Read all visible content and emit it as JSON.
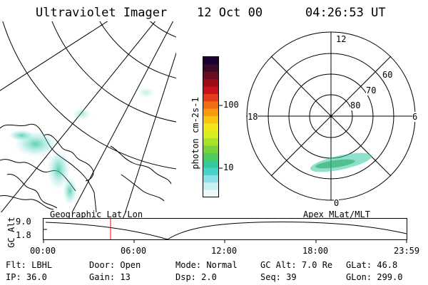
{
  "header": {
    "title": "Ultraviolet Imager",
    "date": "12 Oct 00",
    "time": "04:26:53 UT"
  },
  "colorbar": {
    "unit_label": "photon cm-2s-1",
    "ticks": [
      "100",
      "10"
    ],
    "colors": [
      "#1a0033",
      "#3b0a2a",
      "#6b0c20",
      "#9c0d18",
      "#c8101a",
      "#e53a1a",
      "#f06c12",
      "#f69a0e",
      "#f8c412",
      "#f4e61a",
      "#d8ee20",
      "#a8e22a",
      "#78d43c",
      "#4ccc5c",
      "#34c89a",
      "#48d2cc",
      "#8ae0e6",
      "#c8eff2",
      "#eef8fa"
    ]
  },
  "left_panel": {
    "label": "Geographic Lat/Lon"
  },
  "right_panel": {
    "label": "Apex MLat/MLT",
    "mlt_labels": {
      "top": "12",
      "left": "18",
      "right": "6",
      "bottom": "0"
    },
    "lat_labels": [
      "60",
      "70",
      "80"
    ]
  },
  "altitude_plot": {
    "ylabel": "GC Alt",
    "yticks": [
      "9.0",
      "1.8"
    ],
    "xticks": [
      "00:00",
      "06:00",
      "12:00",
      "18:00",
      "23:59"
    ],
    "marker_color": "#ff0000"
  },
  "info": {
    "row1": [
      {
        "label": "Flt:",
        "value": "LBHL"
      },
      {
        "label": "Door:",
        "value": "Open"
      },
      {
        "label": "Mode:",
        "value": "Normal"
      },
      {
        "label": "GC Alt:",
        "value": "7.0 Re"
      },
      {
        "label": "GLat:",
        "value": "46.8"
      }
    ],
    "row2": [
      {
        "label": "IP:",
        "value": "36.0"
      },
      {
        "label": "Gain:",
        "value": "13"
      },
      {
        "label": "Dsp:",
        "value": "2.0"
      },
      {
        "label": "Seq:",
        "value": "39"
      },
      {
        "label": "GLon:",
        "value": "299.0"
      }
    ]
  }
}
